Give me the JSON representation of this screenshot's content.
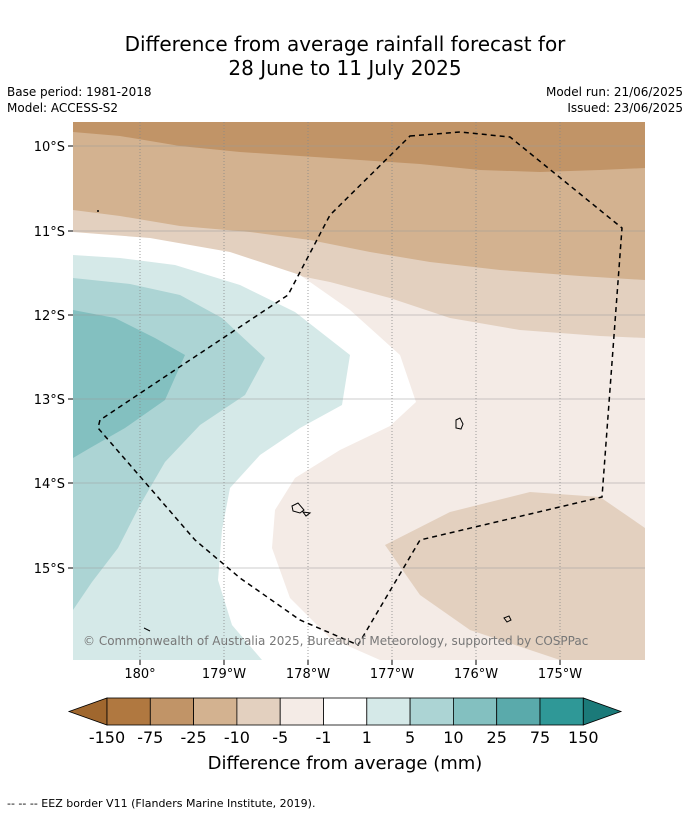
{
  "title": {
    "line1": "Difference from average rainfall forecast for",
    "line2": "28 June to 11 July 2025"
  },
  "meta": {
    "base_period": "Base period: 1981-2018",
    "model": "Model: ACCESS-S2",
    "model_run": "Model run: 21/06/2025",
    "issued": "Issued: 23/06/2025"
  },
  "map": {
    "lat_labels": [
      "10°S",
      "11°S",
      "12°S",
      "13°S",
      "14°S",
      "15°S"
    ],
    "lon_labels": [
      "180°",
      "179°W",
      "178°W",
      "177°W",
      "176°W",
      "175°W"
    ],
    "copyright": "© Commonwealth of Australia 2025, Bureau of Meteorology, supported by COSPPac"
  },
  "colorbar": {
    "title": "Difference from average (mm)",
    "labels": [
      "-150",
      "-75",
      "-25",
      "-10",
      "-5",
      "-1",
      "1",
      "5",
      "10",
      "25",
      "75",
      "150"
    ],
    "colors": {
      "lt_neg150": "#a0672e",
      "neg150_neg75": "#b07840",
      "neg75_neg25": "#c19467",
      "neg25_neg10": "#d3b290",
      "neg10_neg5": "#e3d0bf",
      "neg5_neg1": "#f4ebe6",
      "neg1_1": "#ffffff",
      "1_5": "#d5e9e8",
      "5_10": "#acd4d4",
      "10_25": "#83c0c0",
      "25_75": "#5aaaab",
      "75_150": "#2f9897",
      "gt_150": "#1b7a79"
    }
  },
  "footnote": "--  --  -- EEZ border V11 (Flanders Marine Institute, 2019)."
}
